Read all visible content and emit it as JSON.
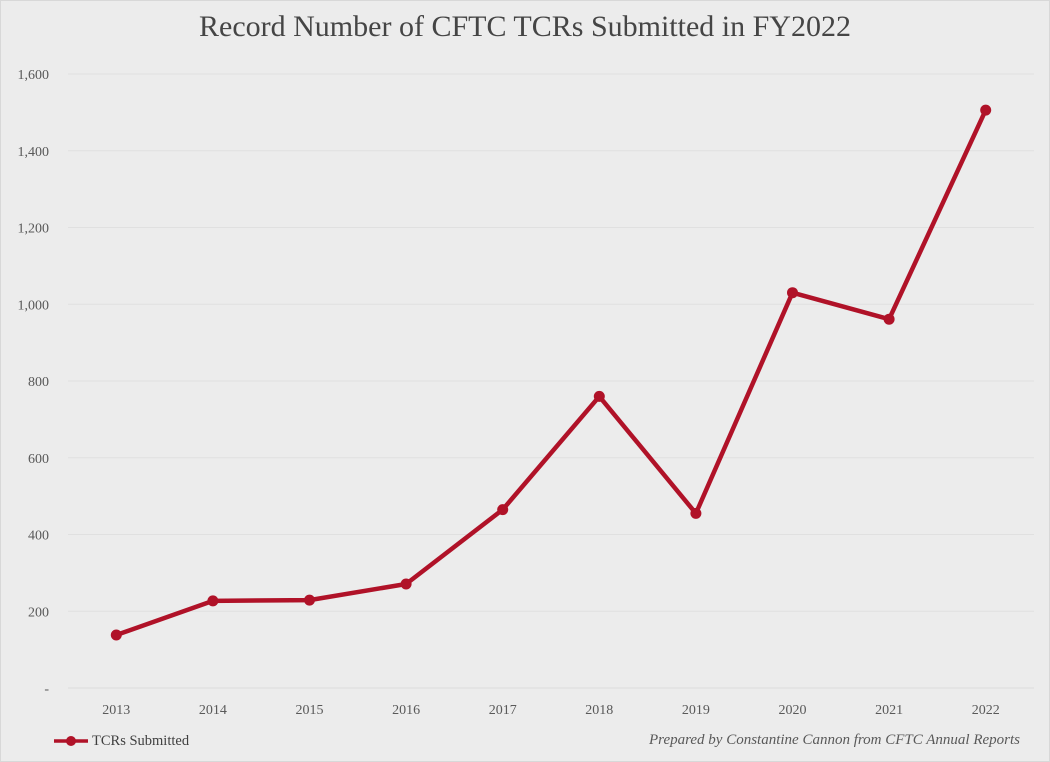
{
  "title": "Record Number of CFTC TCRs Submitted in FY2022",
  "legend": {
    "label": "TCRs Submitted"
  },
  "attribution": "Prepared by Constantine Cannon from CFTC Annual Reports",
  "colors": {
    "background": "#ECECEC",
    "line": "#B01228",
    "marker": "#B01228",
    "grid": "#E0E0E0",
    "tick_text": "#595959",
    "title_text": "#454545"
  },
  "chart_data": {
    "type": "line",
    "title": "Record Number of CFTC TCRs Submitted in FY2022",
    "categories": [
      "2013",
      "2014",
      "2015",
      "2016",
      "2017",
      "2018",
      "2019",
      "2020",
      "2021",
      "2022"
    ],
    "series": [
      {
        "name": "TCRs Submitted",
        "values": [
          138,
          227,
          229,
          271,
          465,
          760,
          455,
          1030,
          961,
          1506
        ]
      }
    ],
    "xlabel": "",
    "ylabel": "",
    "ylim": [
      0,
      1600
    ],
    "ytick_values": [
      0,
      200,
      400,
      600,
      800,
      1000,
      1200,
      1400,
      1600
    ],
    "ytick_labels": [
      "-",
      "200",
      "400",
      "600",
      "800",
      "1,000",
      "1,200",
      "1,400",
      "1,600"
    ],
    "grid": true,
    "legend_position": "bottom-left",
    "annotations": []
  }
}
